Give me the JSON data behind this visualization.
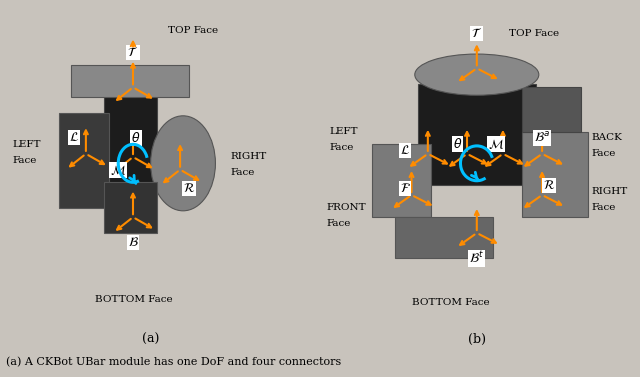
{
  "fig_bg_color": "#c8c3bc",
  "panel_bg_color": "#c8c3bc",
  "orange": "#FF8C00",
  "cyan": "#00BFFF",
  "white": "#ffffff",
  "robot_dark": "#1c1c1c",
  "robot_mid": "#2e2e2e",
  "robot_light": "#4a4a4a",
  "robot_silver": "#888888",
  "robot_silver2": "#aaaaaa",
  "subfig_a_label": "(a)",
  "subfig_b_label": "(b)",
  "caption": "(a) A CKBot UBar module has one DoF and four connectors"
}
